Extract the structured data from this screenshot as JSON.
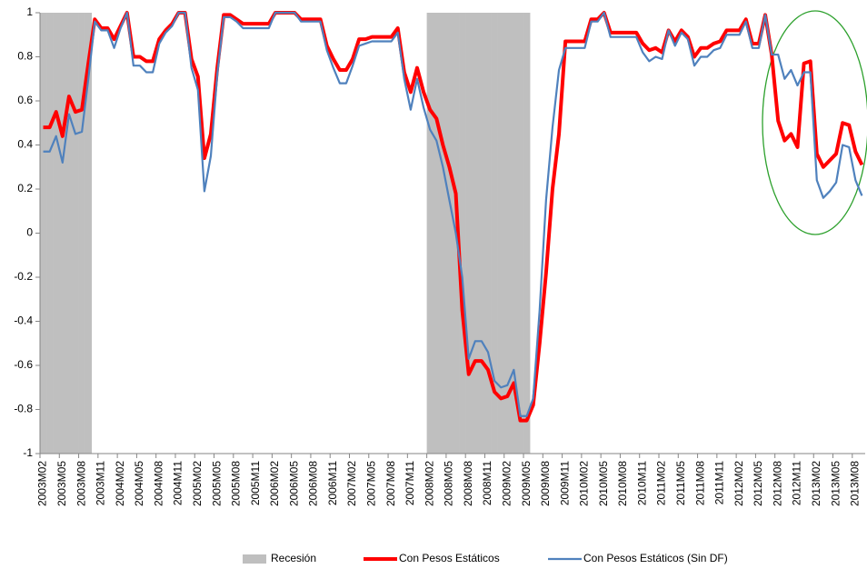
{
  "chart_data": {
    "type": "line",
    "categories": [
      "2003M02",
      null,
      null,
      "2003M05",
      null,
      null,
      "2003M08",
      null,
      null,
      "2003M11",
      null,
      null,
      "2004M02",
      null,
      null,
      "2004M05",
      null,
      null,
      "2004M08",
      null,
      null,
      "2004M11",
      null,
      null,
      "2005M02",
      null,
      null,
      "2005M05",
      null,
      null,
      "2005M08",
      null,
      null,
      "2005M11",
      null,
      null,
      "2006M02",
      null,
      null,
      "2006M05",
      null,
      null,
      "2006M08",
      null,
      null,
      "2006M11",
      null,
      null,
      "2007M02",
      null,
      null,
      "2007M05",
      null,
      null,
      "2007M08",
      null,
      null,
      "2007M11",
      null,
      null,
      "2008M02",
      null,
      null,
      "2008M05",
      null,
      null,
      "2008M08",
      null,
      null,
      "2008M11",
      null,
      null,
      "2009M02",
      null,
      null,
      "2009M05",
      null,
      null,
      "2009M08",
      null,
      null,
      "2009M11",
      null,
      null,
      "2010M02",
      null,
      null,
      "2010M05",
      null,
      null,
      "2010M08",
      null,
      null,
      "2010M11",
      null,
      null,
      "2011M02",
      null,
      null,
      "2011M05",
      null,
      null,
      "2011M08",
      null,
      null,
      "2011M11",
      null,
      null,
      "2012M02",
      null,
      null,
      "2012M05",
      null,
      null,
      "2012M08",
      null,
      null,
      "2012M11",
      null,
      null,
      "2013M02",
      null,
      null,
      "2013M05",
      null,
      null,
      "2013M08",
      null
    ],
    "series": [
      {
        "name": "Recesión",
        "type": "bar",
        "color": "#bfbfbf",
        "values": [
          1,
          1,
          1,
          1,
          1,
          1,
          1,
          1,
          null,
          null,
          null,
          null,
          null,
          null,
          null,
          null,
          null,
          null,
          null,
          null,
          null,
          null,
          null,
          null,
          null,
          null,
          null,
          null,
          null,
          null,
          null,
          null,
          null,
          null,
          null,
          null,
          null,
          null,
          null,
          null,
          null,
          null,
          null,
          null,
          null,
          null,
          null,
          null,
          null,
          null,
          null,
          null,
          null,
          null,
          null,
          null,
          null,
          null,
          null,
          null,
          1,
          1,
          1,
          1,
          1,
          1,
          1,
          1,
          1,
          1,
          1,
          1,
          1,
          1,
          1,
          1,
          null,
          null,
          null,
          null,
          null,
          null,
          null,
          null,
          null,
          null,
          null,
          null,
          null,
          null,
          null,
          null,
          null,
          null,
          null,
          null,
          null,
          null,
          null,
          null,
          null,
          null,
          null,
          null,
          null,
          null,
          null,
          null,
          null,
          null,
          null,
          null,
          null,
          null,
          null,
          null,
          null,
          null,
          null,
          null,
          null,
          null,
          null,
          null,
          null,
          null,
          null,
          null
        ]
      },
      {
        "name": "Con Pesos Estáticos",
        "type": "line",
        "color": "#ff0000",
        "values": [
          0.48,
          0.48,
          0.55,
          0.44,
          0.62,
          0.55,
          0.56,
          0.77,
          0.97,
          0.93,
          0.93,
          0.88,
          0.94,
          1.0,
          0.8,
          0.8,
          0.78,
          0.78,
          0.88,
          0.92,
          0.95,
          1.0,
          1.0,
          0.79,
          0.71,
          0.34,
          0.45,
          0.75,
          0.99,
          0.99,
          0.97,
          0.95,
          0.95,
          0.95,
          0.95,
          0.95,
          1.0,
          1.0,
          1.0,
          1.0,
          0.97,
          0.97,
          0.97,
          0.97,
          0.85,
          0.79,
          0.74,
          0.74,
          0.79,
          0.88,
          0.88,
          0.89,
          0.89,
          0.89,
          0.89,
          0.93,
          0.73,
          0.64,
          0.75,
          0.64,
          0.56,
          0.52,
          0.4,
          0.3,
          0.18,
          -0.35,
          -0.64,
          -0.58,
          -0.58,
          -0.62,
          -0.72,
          -0.75,
          -0.74,
          -0.68,
          -0.85,
          -0.85,
          -0.78,
          -0.5,
          -0.18,
          0.2,
          0.45,
          0.87,
          0.87,
          0.87,
          0.87,
          0.97,
          0.97,
          1.0,
          0.91,
          0.91,
          0.91,
          0.91,
          0.91,
          0.86,
          0.83,
          0.84,
          0.82,
          0.92,
          0.87,
          0.92,
          0.89,
          0.8,
          0.84,
          0.84,
          0.86,
          0.87,
          0.92,
          0.92,
          0.92,
          0.97,
          0.86,
          0.86,
          0.99,
          0.81,
          0.51,
          0.42,
          0.45,
          0.39,
          0.77,
          0.78,
          0.36,
          0.3,
          0.33,
          0.36,
          0.5,
          0.49,
          0.37,
          0.31
        ]
      },
      {
        "name": "Con Pesos Estáticos (Sin DF)",
        "type": "line",
        "color": "#4f81bd",
        "values": [
          0.37,
          0.37,
          0.44,
          0.32,
          0.54,
          0.45,
          0.46,
          0.7,
          0.96,
          0.92,
          0.92,
          0.84,
          0.93,
          1.0,
          0.76,
          0.76,
          0.73,
          0.73,
          0.86,
          0.91,
          0.94,
          1.0,
          1.0,
          0.75,
          0.65,
          0.19,
          0.35,
          0.72,
          0.98,
          0.98,
          0.96,
          0.93,
          0.93,
          0.93,
          0.93,
          0.93,
          1.0,
          1.0,
          1.0,
          1.0,
          0.96,
          0.96,
          0.96,
          0.96,
          0.83,
          0.75,
          0.68,
          0.68,
          0.76,
          0.85,
          0.86,
          0.87,
          0.87,
          0.87,
          0.87,
          0.91,
          0.7,
          0.56,
          0.7,
          0.57,
          0.47,
          0.42,
          0.3,
          0.15,
          0,
          -0.2,
          -0.57,
          -0.49,
          -0.49,
          -0.54,
          -0.67,
          -0.7,
          -0.69,
          -0.62,
          -0.83,
          -0.83,
          -0.75,
          -0.35,
          0.15,
          0.48,
          0.74,
          0.84,
          0.84,
          0.84,
          0.84,
          0.96,
          0.96,
          1.0,
          0.89,
          0.89,
          0.89,
          0.89,
          0.89,
          0.82,
          0.78,
          0.8,
          0.79,
          0.92,
          0.85,
          0.91,
          0.88,
          0.76,
          0.8,
          0.8,
          0.83,
          0.84,
          0.9,
          0.9,
          0.9,
          0.96,
          0.84,
          0.84,
          0.99,
          0.81,
          0.81,
          0.7,
          0.74,
          0.67,
          0.73,
          0.73,
          0.24,
          0.16,
          0.19,
          0.23,
          0.4,
          0.39,
          0.24,
          0.17
        ]
      }
    ],
    "ylim": [
      -1,
      1
    ],
    "yticks": [
      -1,
      -0.8,
      -0.6,
      -0.4,
      -0.2,
      0,
      0.2,
      0.4,
      0.6,
      0.8,
      1
    ],
    "grid": false,
    "legend": "bottom"
  }
}
